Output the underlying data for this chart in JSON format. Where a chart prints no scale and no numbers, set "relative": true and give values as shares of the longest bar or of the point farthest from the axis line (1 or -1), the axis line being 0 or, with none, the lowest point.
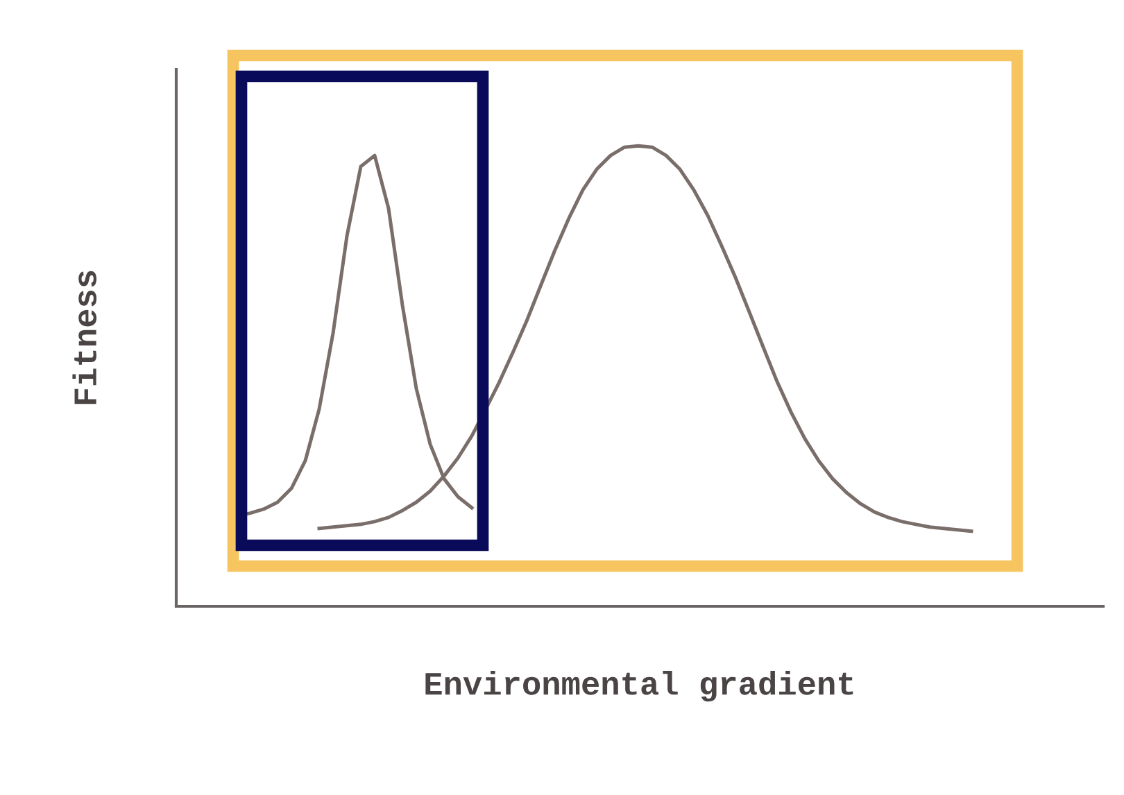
{
  "chart_data": {
    "type": "line",
    "relative": true,
    "xlabel": "Environmental gradient",
    "ylabel": "Fitness",
    "grid": false,
    "marker": "none",
    "line_style": "solid",
    "categories": [
      null,
      null,
      null,
      null,
      null,
      null,
      null,
      null,
      null,
      null,
      null,
      null,
      null,
      null,
      null,
      null,
      null,
      null,
      null,
      null,
      null,
      null,
      null,
      null,
      null,
      null,
      null,
      null,
      null,
      null,
      null,
      null,
      null,
      null,
      null,
      null,
      null,
      null,
      null,
      null,
      null,
      null,
      null,
      null,
      null,
      null,
      null,
      null,
      null,
      null,
      null,
      null,
      null,
      null
    ],
    "series": [
      {
        "color": "#7a6e6a",
        "values": [
          0.196,
          0.202,
          0.211,
          0.226,
          0.256,
          0.316,
          0.428,
          0.593,
          0.804,
          0.955,
          0.979,
          0.864,
          0.654,
          0.473,
          0.352,
          0.277,
          0.238,
          0.214,
          null,
          null,
          null,
          null,
          null,
          null,
          null,
          null,
          null,
          null,
          null,
          null,
          null,
          null,
          null,
          null,
          null,
          null,
          null,
          null,
          null,
          null,
          null,
          null,
          null,
          null,
          null,
          null,
          null,
          null,
          null,
          null,
          null,
          null,
          null,
          null
        ]
      },
      {
        "color": "#7a6e6a",
        "values": [
          null,
          null,
          null,
          null,
          null,
          null,
          0.169,
          0.172,
          0.175,
          0.178,
          0.184,
          0.193,
          0.208,
          0.226,
          0.25,
          0.283,
          0.322,
          0.37,
          0.428,
          0.488,
          0.554,
          0.623,
          0.699,
          0.774,
          0.843,
          0.904,
          0.949,
          0.979,
          0.997,
          1,
          0.997,
          0.979,
          0.949,
          0.904,
          0.849,
          0.783,
          0.714,
          0.639,
          0.563,
          0.488,
          0.422,
          0.364,
          0.316,
          0.277,
          0.247,
          0.223,
          0.205,
          0.193,
          0.184,
          0.178,
          0.172,
          0.169,
          0.166,
          0.163
        ]
      }
    ]
  }
}
